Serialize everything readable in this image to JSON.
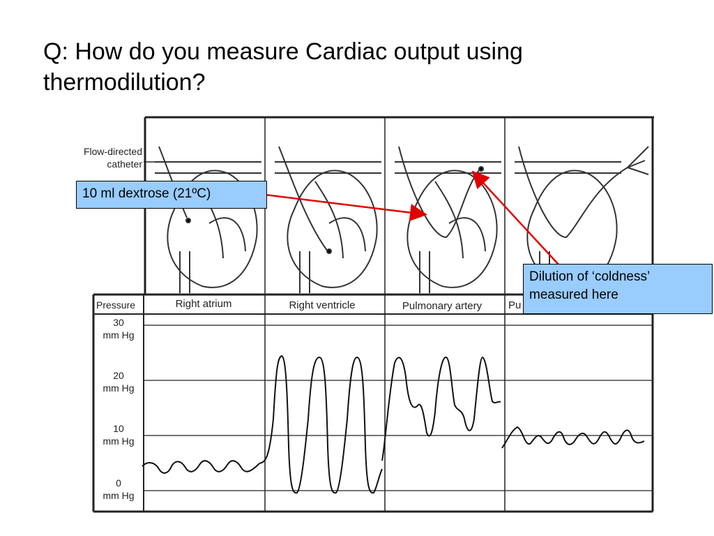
{
  "slide": {
    "title": "Q: How do you measure Cardiac output using thermodilution?"
  },
  "diagram": {
    "catheter_label_line1": "Flow-directed",
    "catheter_label_line2": "catheter",
    "pressure_header": "Pressure",
    "panels": [
      "Right atrium",
      "Right ventricle",
      "Pulmonary artery",
      "Pu"
    ],
    "y_ticks": [
      {
        "value": "30",
        "unit": "mm Hg"
      },
      {
        "value": "20",
        "unit": "mm Hg"
      },
      {
        "value": "10",
        "unit": "mm Hg"
      },
      {
        "value": "0",
        "unit": "mm Hg"
      }
    ]
  },
  "callouts": {
    "injection": "10 ml dextrose (21ºC)",
    "measurement": "Dilution of ‘coldness’ measured here"
  },
  "colors": {
    "callout_fill": "#99ccff",
    "arrow": "#e00000"
  }
}
